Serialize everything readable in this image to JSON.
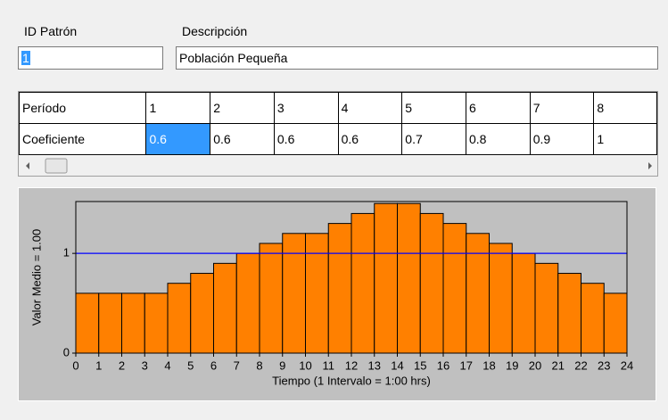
{
  "form": {
    "id_label": "ID Patrón",
    "id_value": "1",
    "description_label": "Descripción",
    "description_value": "Población Pequeña"
  },
  "table": {
    "row_headers": [
      "Período",
      "Coeficiente"
    ],
    "periods": [
      1,
      2,
      3,
      4,
      5,
      6,
      7,
      8
    ],
    "coefficients": [
      0.6,
      0.6,
      0.6,
      0.6,
      0.7,
      0.8,
      0.9,
      1
    ]
  },
  "chart_data": {
    "type": "histogram",
    "xlabel": "Tiempo (1 Intervalo = 1:00 hrs)",
    "ylabel": "Valor Medio = 1.00",
    "bins": [
      0,
      1,
      2,
      3,
      4,
      5,
      6,
      7,
      8,
      9,
      10,
      11,
      12,
      13,
      14,
      15,
      16,
      17,
      18,
      19,
      20,
      21,
      22,
      23,
      24
    ],
    "values": [
      0.6,
      0.6,
      0.6,
      0.6,
      0.7,
      0.8,
      0.9,
      1.0,
      1.1,
      1.2,
      1.2,
      1.3,
      1.4,
      1.5,
      1.5,
      1.4,
      1.3,
      1.2,
      1.1,
      1.0,
      0.9,
      0.8,
      0.7,
      0.6
    ],
    "color": "#ff8000",
    "mean": 1,
    "mean_color": "#0000ff",
    "xlim": [
      0,
      24
    ],
    "xticks": [
      0,
      1,
      2,
      3,
      4,
      5,
      6,
      7,
      8,
      9,
      10,
      11,
      12,
      13,
      14,
      15,
      16,
      17,
      18,
      19,
      20,
      21,
      22,
      23,
      24
    ],
    "ylim": [
      0,
      1.52
    ],
    "yticks": [
      0,
      1
    ]
  }
}
